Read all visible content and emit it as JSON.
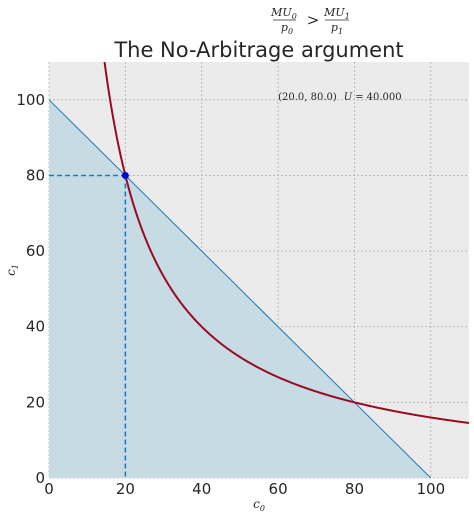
{
  "chart_data": {
    "type": "line",
    "title": "The No-Arbitrage argument",
    "suptitle": {
      "lhs_num": "MU",
      "lhs_num_sub": "0",
      "lhs_den": "p",
      "lhs_den_sub": "0",
      "operator": ">",
      "rhs_num": "MU",
      "rhs_num_sub": "1",
      "rhs_den": "p",
      "rhs_den_sub": "1"
    },
    "xlabel": {
      "base": "c",
      "sub": "0"
    },
    "ylabel": {
      "base": "c",
      "sub": "1"
    },
    "xlim": [
      0,
      110
    ],
    "ylim": [
      0,
      110
    ],
    "xticks": [
      0,
      20,
      40,
      60,
      80,
      100
    ],
    "yticks": [
      0,
      20,
      40,
      60,
      80,
      100
    ],
    "grid": true,
    "budget_line": {
      "x": [
        0,
        100
      ],
      "y": [
        100,
        0
      ],
      "color": "#1f77b4",
      "fill": "#c7dbe5"
    },
    "indifference_curve": {
      "utility": 1600,
      "color": "#9b0a23"
    },
    "point": {
      "x": 20,
      "y": 80,
      "color": "#0000cc",
      "guide_color": "#1f77b4"
    },
    "annotation": {
      "coords": "(20.0, 80.0)",
      "utility_label": "U",
      "utility_value": "40.000",
      "x": 60,
      "y": 100
    },
    "colors": {
      "axes_bg": "#ebebeb",
      "grid": "#b0b0b0"
    }
  }
}
